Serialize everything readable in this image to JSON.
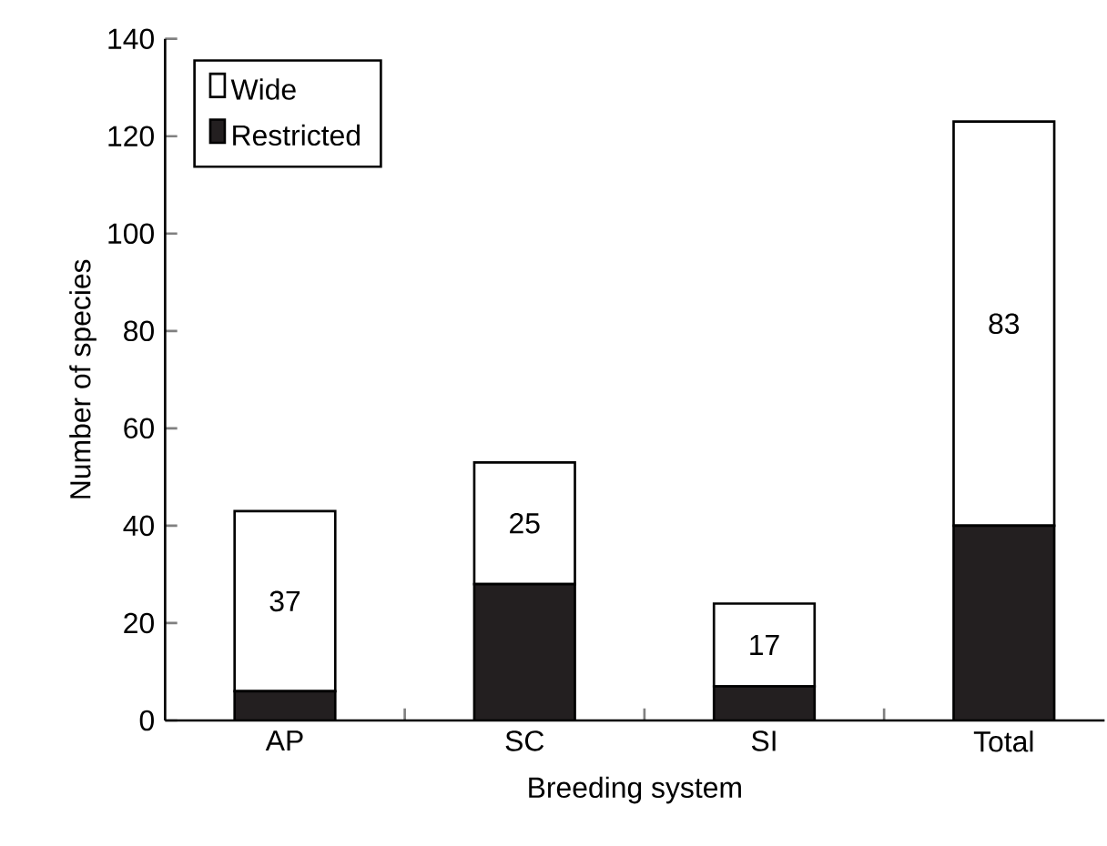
{
  "chart_data": {
    "type": "bar",
    "stacked": true,
    "xlabel": "Breeding system",
    "ylabel": "Number of species",
    "categories": [
      "AP",
      "SC",
      "SI",
      "Total"
    ],
    "series": [
      {
        "name": "Restricted",
        "color": "#231f20",
        "values": [
          6,
          28,
          7,
          40
        ]
      },
      {
        "name": "Wide",
        "color": "#ffffff",
        "values": [
          37,
          25,
          17,
          83
        ],
        "value_labels": [
          "37",
          "25",
          "17",
          "83"
        ]
      }
    ],
    "ylim": [
      0,
      140
    ],
    "yticks": [
      0,
      20,
      40,
      60,
      80,
      100,
      120,
      140
    ],
    "legend": "top left"
  }
}
